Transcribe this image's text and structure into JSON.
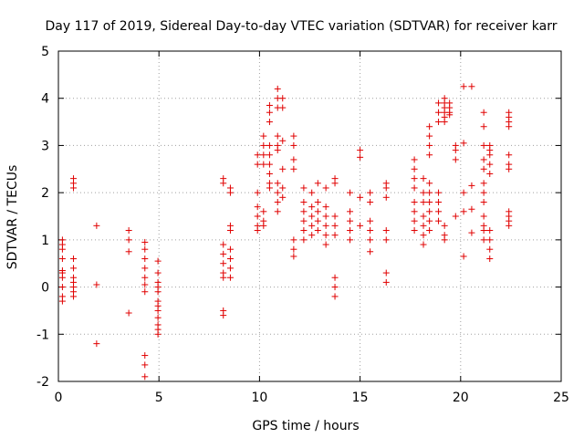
{
  "chart_data": {
    "type": "scatter",
    "title": "Day 117 of 2019, Sidereal Day-to-day VTEC variation (SDTVAR) for receiver karr",
    "xlabel": "GPS time / hours",
    "ylabel": "SDTVAR / TECUs",
    "xlim": [
      0,
      25
    ],
    "ylim": [
      -2,
      5
    ],
    "xticks": [
      "0",
      "5",
      "10",
      "15",
      "20",
      "25"
    ],
    "yticks": [
      "-2",
      "-1",
      "0",
      "1",
      "2",
      "3",
      "4",
      "5"
    ],
    "grid": true,
    "marker": "+",
    "color": "#e00000",
    "series": [
      {
        "name": "SDTVAR",
        "clusters": [
          {
            "x": 0.2,
            "y": [
              0.9,
              1.0,
              0.8,
              0.6,
              0.3,
              0.2,
              0.0,
              -0.2,
              -0.3,
              0.35
            ]
          },
          {
            "x": 0.75,
            "y": [
              2.3,
              2.2,
              2.1,
              0.6,
              0.4,
              0.2,
              0.0,
              -0.1,
              -0.2,
              0.1
            ]
          },
          {
            "x": 1.9,
            "y": [
              1.3,
              0.05,
              -1.2
            ]
          },
          {
            "x": 3.5,
            "y": [
              1.2,
              1.0,
              0.75,
              -0.55
            ]
          },
          {
            "x": 4.3,
            "y": [
              0.95,
              0.8,
              0.6,
              0.4,
              0.2,
              0.05,
              -0.1,
              -1.45,
              -1.65,
              -1.9
            ]
          },
          {
            "x": 4.95,
            "y": [
              0.55,
              0.3,
              0.1,
              -0.1,
              -0.3,
              -0.5,
              -0.65,
              -0.8,
              -0.9,
              -1.0,
              0.0,
              -0.4
            ]
          },
          {
            "x": 8.2,
            "y": [
              2.3,
              2.2,
              0.9,
              0.7,
              0.5,
              0.3,
              0.2,
              -0.5,
              -0.6
            ]
          },
          {
            "x": 8.55,
            "y": [
              2.1,
              2.0,
              1.3,
              1.2,
              0.8,
              0.6,
              0.4,
              0.2
            ]
          },
          {
            "x": 9.9,
            "y": [
              2.8,
              2.6,
              2.0,
              1.7,
              1.5,
              1.3,
              1.2
            ]
          },
          {
            "x": 10.2,
            "y": [
              3.2,
              3.0,
              2.8,
              2.6,
              1.6,
              1.4,
              1.3
            ]
          },
          {
            "x": 10.5,
            "y": [
              3.85,
              3.7,
              3.5,
              3.0,
              2.8,
              2.6,
              2.4,
              2.2,
              2.1
            ]
          },
          {
            "x": 10.9,
            "y": [
              4.2,
              4.0,
              3.8,
              3.2,
              3.0,
              2.9,
              2.2,
              2.0,
              1.8,
              1.6
            ]
          },
          {
            "x": 11.15,
            "y": [
              4.0,
              3.8,
              3.1,
              2.5,
              2.1,
              1.9
            ]
          },
          {
            "x": 11.7,
            "y": [
              3.2,
              3.0,
              2.7,
              2.5,
              1.0,
              0.8,
              0.65
            ]
          },
          {
            "x": 12.2,
            "y": [
              2.1,
              1.8,
              1.6,
              1.4,
              1.2,
              1.0
            ]
          },
          {
            "x": 12.6,
            "y": [
              2.0,
              1.7,
              1.5,
              1.3,
              1.1
            ]
          },
          {
            "x": 12.9,
            "y": [
              1.8,
              1.6,
              1.4,
              1.2,
              2.2
            ]
          },
          {
            "x": 13.3,
            "y": [
              2.1,
              1.7,
              1.5,
              1.3,
              1.1,
              0.9
            ]
          },
          {
            "x": 13.75,
            "y": [
              2.3,
              2.2,
              1.5,
              1.3,
              1.1,
              0.2,
              0.0,
              -0.2
            ]
          },
          {
            "x": 14.5,
            "y": [
              1.6,
              1.4,
              1.2,
              1.0,
              2.0
            ]
          },
          {
            "x": 15.0,
            "y": [
              2.9,
              2.75,
              1.9,
              1.3
            ]
          },
          {
            "x": 15.5,
            "y": [
              2.0,
              1.8,
              1.4,
              1.2,
              1.0,
              0.75
            ]
          },
          {
            "x": 16.3,
            "y": [
              2.2,
              2.1,
              1.9,
              1.2,
              1.0,
              0.3,
              0.1
            ]
          },
          {
            "x": 17.7,
            "y": [
              2.7,
              2.5,
              2.3,
              2.1,
              1.8,
              1.6,
              1.4,
              1.2
            ]
          },
          {
            "x": 18.15,
            "y": [
              2.3,
              2.0,
              1.8,
              1.5,
              1.3,
              1.1,
              0.9
            ]
          },
          {
            "x": 18.45,
            "y": [
              3.4,
              3.2,
              3.0,
              2.8,
              2.2,
              2.0,
              1.8,
              1.6,
              1.4,
              1.2
            ]
          },
          {
            "x": 18.9,
            "y": [
              3.9,
              3.7,
              3.5,
              2.0,
              1.8,
              1.6,
              1.4
            ]
          },
          {
            "x": 19.2,
            "y": [
              4.0,
              3.9,
              3.8,
              3.7,
              3.6,
              3.5,
              1.3,
              1.1,
              1.0
            ]
          },
          {
            "x": 19.45,
            "y": [
              3.9,
              3.8,
              3.7,
              3.65
            ]
          },
          {
            "x": 19.75,
            "y": [
              3.0,
              2.9,
              2.7,
              1.5
            ]
          },
          {
            "x": 20.15,
            "y": [
              4.25,
              3.05,
              2.0,
              1.6,
              0.65
            ]
          },
          {
            "x": 20.55,
            "y": [
              4.25,
              2.15,
              1.65,
              1.15
            ]
          },
          {
            "x": 21.15,
            "y": [
              3.7,
              3.4,
              3.0,
              2.7,
              2.5,
              2.2,
              2.0,
              1.8,
              1.5,
              1.3,
              1.2,
              1.0
            ]
          },
          {
            "x": 21.45,
            "y": [
              3.0,
              2.9,
              2.8,
              2.6,
              2.4,
              1.2,
              1.0,
              0.8,
              0.6
            ]
          },
          {
            "x": 22.4,
            "y": [
              3.7,
              3.6,
              3.5,
              3.4,
              2.8,
              2.6,
              2.5,
              1.6,
              1.5,
              1.4,
              1.3
            ]
          }
        ]
      }
    ]
  }
}
